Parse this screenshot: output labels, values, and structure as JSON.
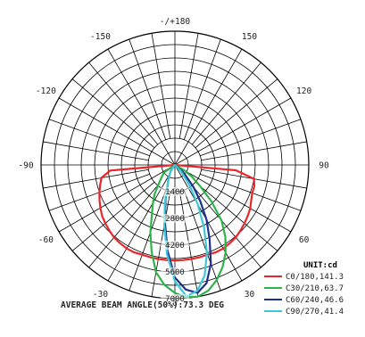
{
  "chart_data": {
    "type": "polar",
    "angle_labels": [
      {
        "angle": 180,
        "label": "-/+180"
      },
      {
        "angle": 150,
        "label": "150"
      },
      {
        "angle": -150,
        "label": "-150"
      },
      {
        "angle": 120,
        "label": "120"
      },
      {
        "angle": -120,
        "label": "-120"
      },
      {
        "angle": 90,
        "label": "90"
      },
      {
        "angle": -90,
        "label": "-90"
      },
      {
        "angle": 60,
        "label": "60"
      },
      {
        "angle": -60,
        "label": "-60"
      },
      {
        "angle": 30,
        "label": "30"
      },
      {
        "angle": -30,
        "label": "-30"
      },
      {
        "angle": 0,
        "label": "0"
      }
    ],
    "ring_values": [
      1400,
      2800,
      4200,
      5600,
      7000
    ],
    "ring_labels": [
      "1400",
      "2800",
      "4200",
      "5600",
      "7000"
    ],
    "rmax": 7000,
    "angle_step": 10,
    "unit_label": "UNIT:cd",
    "footer": "AVERAGE BEAM ANGLE(50%):73.3 DEG",
    "series": [
      {
        "name": "C0/180,141.3",
        "color": "#e8262b",
        "points": [
          [
            -85,
            3400
          ],
          [
            -80,
            3900
          ],
          [
            -75,
            4050
          ],
          [
            -70,
            4200
          ],
          [
            -65,
            4350
          ],
          [
            -60,
            4500
          ],
          [
            -55,
            4650
          ],
          [
            -50,
            4750
          ],
          [
            -45,
            4850
          ],
          [
            -40,
            4950
          ],
          [
            -35,
            5000
          ],
          [
            -30,
            5050
          ],
          [
            -25,
            5050
          ],
          [
            -20,
            5000
          ],
          [
            -15,
            5000
          ],
          [
            -10,
            5000
          ],
          [
            -5,
            5000
          ],
          [
            0,
            5000
          ],
          [
            5,
            5000
          ],
          [
            10,
            5000
          ],
          [
            15,
            5000
          ],
          [
            20,
            5000
          ],
          [
            25,
            5050
          ],
          [
            30,
            5050
          ],
          [
            35,
            5000
          ],
          [
            40,
            4950
          ],
          [
            45,
            4850
          ],
          [
            50,
            4750
          ],
          [
            55,
            4650
          ],
          [
            60,
            4550
          ],
          [
            65,
            4400
          ],
          [
            70,
            4300
          ],
          [
            75,
            4300
          ],
          [
            80,
            4200
          ],
          [
            85,
            3200
          ]
        ]
      },
      {
        "name": "C30/210,63.7",
        "color": "#2eb34a",
        "points": [
          [
            -55,
            700
          ],
          [
            -45,
            1050
          ],
          [
            -35,
            1850
          ],
          [
            -30,
            2300
          ],
          [
            -25,
            2850
          ],
          [
            -20,
            3750
          ],
          [
            -15,
            4700
          ],
          [
            -10,
            5700
          ],
          [
            -5,
            6300
          ],
          [
            0,
            6700
          ],
          [
            5,
            6950
          ],
          [
            10,
            7000
          ],
          [
            15,
            6800
          ],
          [
            20,
            6400
          ],
          [
            25,
            5900
          ],
          [
            30,
            5300
          ],
          [
            35,
            4600
          ],
          [
            40,
            3800
          ],
          [
            45,
            2700
          ],
          [
            50,
            1700
          ],
          [
            55,
            1100
          ],
          [
            60,
            600
          ]
        ]
      },
      {
        "name": "C60/240,46.6",
        "color": "#1e2f8c",
        "points": [
          [
            -35,
            400
          ],
          [
            -25,
            800
          ],
          [
            -15,
            1900
          ],
          [
            -10,
            3000
          ],
          [
            -5,
            4500
          ],
          [
            0,
            5900
          ],
          [
            5,
            6550
          ],
          [
            10,
            6800
          ],
          [
            15,
            6400
          ],
          [
            20,
            5500
          ],
          [
            25,
            4300
          ],
          [
            30,
            3300
          ],
          [
            35,
            2300
          ],
          [
            40,
            1500
          ],
          [
            45,
            800
          ],
          [
            50,
            500
          ]
        ]
      },
      {
        "name": "C90/270,41.4",
        "color": "#3cc8d6",
        "points": [
          [
            -35,
            400
          ],
          [
            -25,
            800
          ],
          [
            -15,
            2000
          ],
          [
            -10,
            3200
          ],
          [
            -5,
            4700
          ],
          [
            0,
            6100
          ],
          [
            5,
            6900
          ],
          [
            10,
            6700
          ],
          [
            15,
            6000
          ],
          [
            20,
            4900
          ],
          [
            25,
            3600
          ],
          [
            30,
            2400
          ],
          [
            35,
            1400
          ],
          [
            40,
            700
          ],
          [
            45,
            400
          ]
        ]
      }
    ]
  }
}
